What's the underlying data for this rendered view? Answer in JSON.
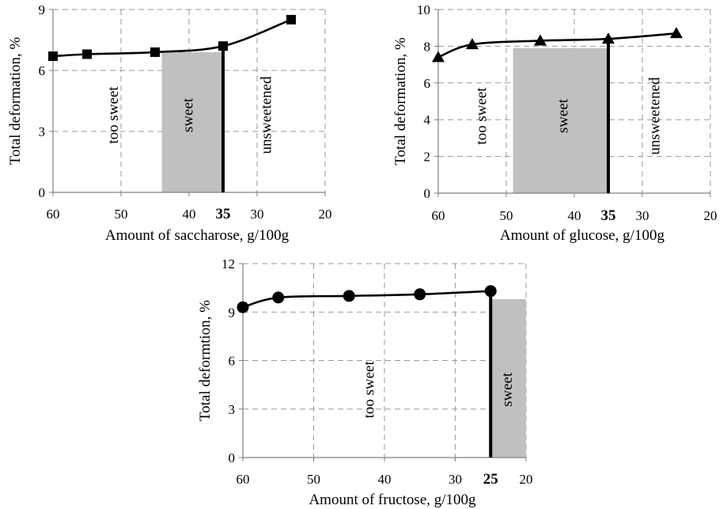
{
  "chart_data": [
    {
      "type": "line",
      "id": "saccharose",
      "xlabel": "Amount of saccharose, g/100g",
      "ylabel": "Total deformation, %",
      "xlim": [
        60,
        20
      ],
      "ylim": [
        0,
        9
      ],
      "x_ticks": [
        "60",
        "50",
        "40",
        "30",
        "20"
      ],
      "y_ticks": [
        "0",
        "3",
        "6",
        "9"
      ],
      "grid": "dashed",
      "series": [
        {
          "marker": "square",
          "x": [
            60,
            55,
            45,
            35,
            25
          ],
          "y": [
            6.7,
            6.8,
            6.9,
            7.2,
            8.5
          ]
        }
      ],
      "threshold": {
        "x": 35,
        "label": "35"
      },
      "shaded_region": {
        "x_from": 44,
        "x_to": 35,
        "y_top": 6.9,
        "color": "#c0c0c0"
      },
      "region_labels": [
        {
          "text": "too sweet",
          "x": 51,
          "y": 3.8
        },
        {
          "text": "sweet",
          "x": 40,
          "y": 3.8
        },
        {
          "text": "unsweetened",
          "x": 28.5,
          "y": 3.8
        }
      ]
    },
    {
      "type": "line",
      "id": "glucose",
      "xlabel": "Amount of glucose, g/100g",
      "ylabel": "Total deformation, %",
      "xlim": [
        60,
        20
      ],
      "ylim": [
        0,
        10
      ],
      "x_ticks": [
        "60",
        "50",
        "40",
        "30",
        "20"
      ],
      "y_ticks": [
        "0",
        "2",
        "4",
        "6",
        "8",
        "10"
      ],
      "grid": "dashed",
      "series": [
        {
          "marker": "triangle",
          "x": [
            60,
            55,
            45,
            35,
            25
          ],
          "y": [
            7.4,
            8.1,
            8.3,
            8.4,
            8.7
          ]
        }
      ],
      "threshold": {
        "x": 35,
        "label": "35"
      },
      "shaded_region": {
        "x_from": 49,
        "x_to": 35,
        "y_top": 7.9,
        "color": "#c0c0c0"
      },
      "region_labels": [
        {
          "text": "too sweet",
          "x": 53.5,
          "y": 4.2
        },
        {
          "text": "sweet",
          "x": 41.5,
          "y": 4.2
        },
        {
          "text": "unsweetened",
          "x": 28,
          "y": 4.2
        }
      ]
    },
    {
      "type": "line",
      "id": "fructose",
      "xlabel": "Amount of fructose, g/100g",
      "ylabel": "Total deformtion, %",
      "xlim": [
        60,
        20
      ],
      "ylim": [
        0,
        12
      ],
      "x_ticks": [
        "60",
        "50",
        "40",
        "30",
        "20"
      ],
      "y_ticks": [
        "0",
        "3",
        "6",
        "9",
        "12"
      ],
      "grid": "dashed",
      "series": [
        {
          "marker": "circle",
          "x": [
            60,
            55,
            45,
            35,
            25
          ],
          "y": [
            9.3,
            9.9,
            10.0,
            10.1,
            10.3
          ]
        }
      ],
      "threshold": {
        "x": 25,
        "label": "25"
      },
      "shaded_region": {
        "x_from": 25,
        "x_to": 20,
        "y_top": 9.8,
        "color": "#c0c0c0"
      },
      "region_labels": [
        {
          "text": "too sweet",
          "x": 42,
          "y": 4.2
        },
        {
          "text": "sweet",
          "x": 22.5,
          "y": 4.2
        }
      ]
    }
  ]
}
